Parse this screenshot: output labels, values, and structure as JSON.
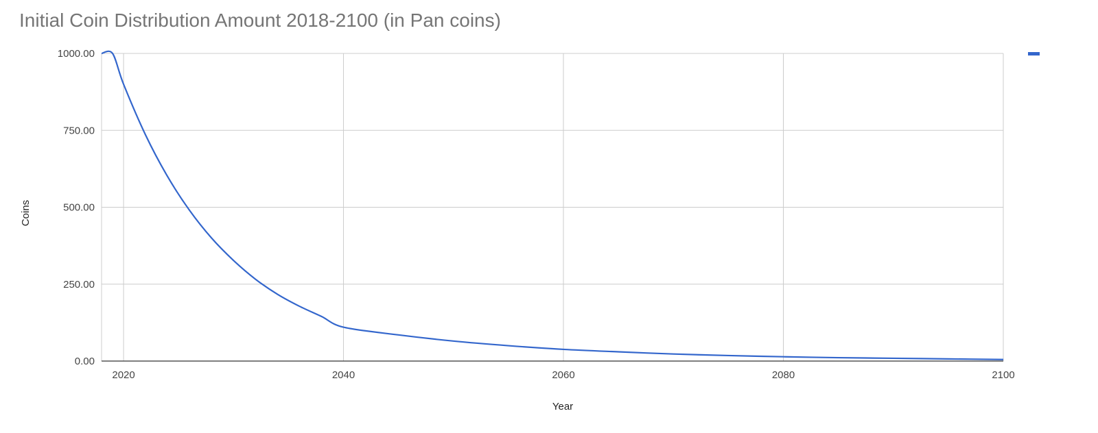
{
  "chart_data": {
    "type": "line",
    "title": "Initial Coin Distribution Amount 2018-2100 (in Pan coins)",
    "xlabel": "Year",
    "ylabel": "Coins",
    "xlim": [
      2018,
      2100
    ],
    "ylim": [
      0,
      1000
    ],
    "x_ticks": [
      "2020",
      "2040",
      "2060",
      "2080",
      "2100"
    ],
    "y_ticks": [
      "0.00",
      "250.00",
      "500.00",
      "750.00",
      "1000.00"
    ],
    "grid": true,
    "legend": "top-right",
    "series": [
      {
        "color": "#3366cc",
        "x": [
          2018,
          2019,
          2020,
          2022,
          2024,
          2026,
          2028,
          2030,
          2032,
          2034,
          2036,
          2038,
          2040,
          2045,
          2050,
          2055,
          2060,
          2065,
          2070,
          2075,
          2080,
          2085,
          2090,
          2095,
          2100
        ],
        "y": [
          1000,
          1000,
          900,
          735,
          600,
          490,
          400,
          327,
          266,
          217,
          178,
          145,
          110,
          85,
          65,
          50,
          38,
          30,
          23,
          18,
          14,
          11,
          9,
          7,
          5
        ]
      }
    ]
  }
}
